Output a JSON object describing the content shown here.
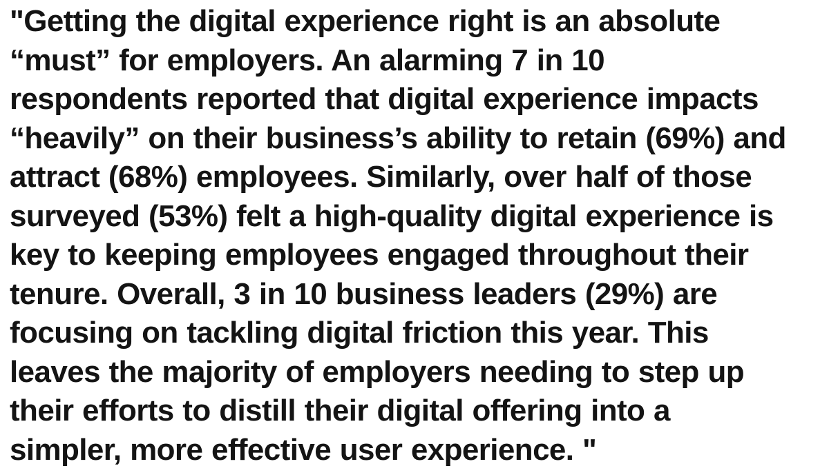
{
  "quote": {
    "lines": [
      "\"Getting the digital experience right is an absolute",
      "“must” for employers. An alarming 7 in 10",
      "respondents reported that digital experience impacts",
      "“heavily” on their business’s ability to retain (69%) and",
      "attract (68%) employees. Similarly, over half of those",
      "surveyed (53%) felt a high-quality digital experience is",
      "key to keeping employees engaged throughout their",
      "tenure. Overall, 3 in 10 business leaders (29%) are",
      "focusing on tackling digital friction this year. This",
      "leaves the majority of employers needing to step up",
      "their efforts to distill their digital offering into a",
      "simpler, more effective user experience. \""
    ]
  }
}
